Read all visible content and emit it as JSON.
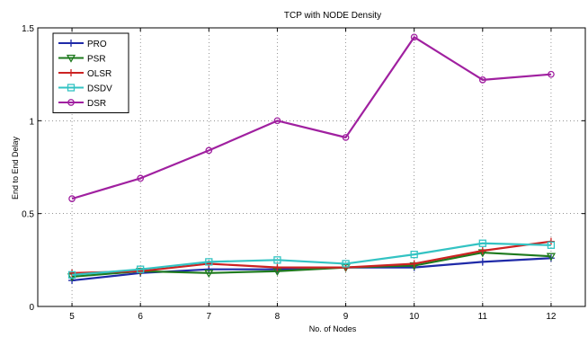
{
  "chart_data": {
    "type": "line",
    "title": "TCP with NODE Density",
    "xlabel": "No. of Nodes",
    "ylabel": "End to End Delay",
    "x": [
      5,
      6,
      7,
      8,
      9,
      10,
      11,
      12
    ],
    "xlim": [
      4.5,
      12.5
    ],
    "ylim": [
      0,
      1.5
    ],
    "xticks": [
      "5",
      "6",
      "7",
      "8",
      "9",
      "10",
      "11",
      "12"
    ],
    "yticks": [
      "0",
      "0.5",
      "1",
      "1.5"
    ],
    "ytick_values": [
      0,
      0.5,
      1,
      1.5
    ],
    "grid": true,
    "legend_position": "top-left",
    "series": [
      {
        "name": "PRO",
        "color": "#1f2aa8",
        "marker": "plus",
        "values": [
          0.14,
          0.18,
          0.2,
          0.2,
          0.21,
          0.21,
          0.24,
          0.26
        ]
      },
      {
        "name": "PSR",
        "color": "#1e7a1e",
        "marker": "triangle-down",
        "values": [
          0.16,
          0.19,
          0.18,
          0.19,
          0.21,
          0.22,
          0.29,
          0.27
        ]
      },
      {
        "name": "OLSR",
        "color": "#cc2222",
        "marker": "plus",
        "values": [
          0.18,
          0.19,
          0.23,
          0.21,
          0.21,
          0.23,
          0.3,
          0.35
        ]
      },
      {
        "name": "DSDV",
        "color": "#33c3c3",
        "marker": "square",
        "values": [
          0.17,
          0.2,
          0.24,
          0.25,
          0.23,
          0.28,
          0.34,
          0.33
        ]
      },
      {
        "name": "DSR",
        "color": "#a020a0",
        "marker": "circle",
        "values": [
          0.58,
          0.69,
          0.84,
          1.0,
          0.91,
          1.45,
          1.22,
          1.25
        ]
      }
    ]
  }
}
